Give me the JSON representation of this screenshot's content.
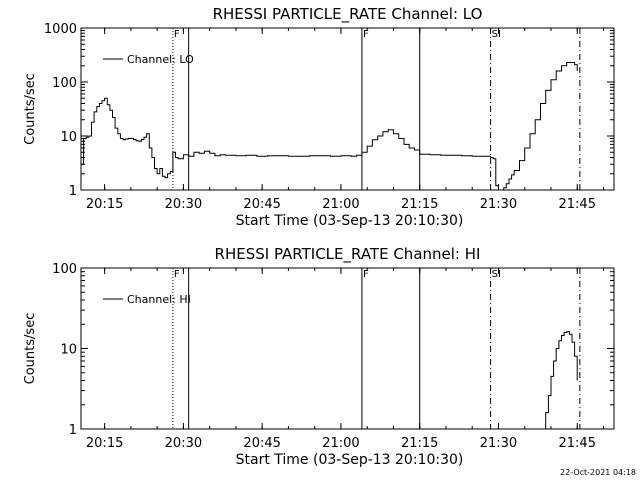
{
  "footer": {
    "date_stamp": "22-Oct-2021 04:18"
  },
  "colors": {
    "background": "#ffffff",
    "foreground": "#000000"
  },
  "chart_data": [
    {
      "type": "line",
      "title": "RHESSI PARTICLE_RATE Channel: LO",
      "xlabel": "Start Time (03-Sep-13 20:10:30)",
      "ylabel": "Counts/sec",
      "y_scale": "log",
      "xlim": [
        "20:10:30",
        "21:52:00"
      ],
      "ylim": [
        1,
        1000
      ],
      "x_tick_labels": [
        "20:15",
        "20:30",
        "20:45",
        "21:00",
        "21:15",
        "21:30",
        "21:45"
      ],
      "y_tick_labels": [
        "1",
        "10",
        "100",
        "1000"
      ],
      "grid": false,
      "legend": {
        "position": "top-left",
        "entries": [
          "Channel: LO"
        ]
      },
      "markers": [
        {
          "time": "20:28:00",
          "style": "dotted",
          "label": "F"
        },
        {
          "time": "20:31:00",
          "style": "solid",
          "label": ""
        },
        {
          "time": "21:04:00",
          "style": "solid",
          "label": "F"
        },
        {
          "time": "21:15:00",
          "style": "solid",
          "label": ""
        },
        {
          "time": "21:28:30",
          "style": "dashdot",
          "label": "SI"
        },
        {
          "time": "21:45:30",
          "style": "dashdot",
          "label": ""
        }
      ],
      "series": [
        {
          "name": "Channel: LO",
          "x": [
            "20:10:30",
            "20:11:00",
            "20:11:30",
            "20:12:00",
            "20:12:30",
            "20:13:00",
            "20:13:30",
            "20:14:00",
            "20:14:30",
            "20:15:00",
            "20:15:30",
            "20:16:00",
            "20:16:30",
            "20:17:00",
            "20:17:30",
            "20:18:00",
            "20:18:30",
            "20:19:00",
            "20:19:30",
            "20:20:00",
            "20:20:30",
            "20:21:00",
            "20:21:30",
            "20:22:00",
            "20:22:30",
            "20:23:00",
            "20:23:30",
            "20:24:00",
            "20:24:30",
            "20:25:00",
            "20:25:30",
            "20:26:00",
            "20:26:30",
            "20:27:00",
            "20:27:30",
            "20:28:00",
            "20:28:30",
            "20:29:00",
            "20:30:00",
            "20:31:00",
            "20:32:00",
            "20:33:00",
            "20:34:00",
            "20:35:00",
            "20:36:00",
            "20:37:00",
            "20:38:00",
            "20:40:00",
            "20:42:00",
            "20:44:00",
            "20:46:00",
            "20:48:00",
            "20:50:00",
            "20:52:00",
            "20:54:00",
            "20:56:00",
            "20:58:00",
            "21:00:00",
            "21:02:00",
            "21:03:00",
            "21:04:00",
            "21:05:00",
            "21:06:00",
            "21:07:00",
            "21:08:00",
            "21:09:00",
            "21:10:00",
            "21:11:00",
            "21:12:00",
            "21:13:00",
            "21:14:00",
            "21:15:00",
            "21:17:00",
            "21:19:00",
            "21:21:00",
            "21:23:00",
            "21:25:00",
            "21:27:00",
            "21:28:30",
            "21:29:00",
            "21:29:30",
            "21:30:00",
            "21:30:30",
            "21:31:00",
            "21:31:30",
            "21:32:00",
            "21:32:30",
            "21:33:00",
            "21:34:00",
            "21:35:00",
            "21:36:00",
            "21:37:00",
            "21:38:00",
            "21:39:00",
            "21:40:00",
            "21:41:00",
            "21:42:00",
            "21:43:00",
            "21:44:00",
            "21:44:30",
            "21:45:00"
          ],
          "y": [
            3.0,
            9.0,
            9.5,
            10.0,
            18,
            28,
            35,
            40,
            45,
            50,
            38,
            30,
            22,
            14,
            11,
            9,
            8.5,
            8.8,
            9.0,
            9.0,
            8.6,
            8.2,
            8.0,
            8.6,
            9.5,
            11,
            6,
            4,
            2.5,
            2.0,
            2.5,
            1.8,
            1.7,
            2.0,
            2.2,
            5.0,
            4.0,
            3.8,
            4.5,
            4.2,
            5.0,
            4.8,
            5.2,
            4.8,
            4.3,
            4.5,
            4.4,
            4.3,
            4.4,
            4.2,
            4.3,
            4.3,
            4.2,
            4.2,
            4.3,
            4.3,
            4.2,
            4.3,
            4.2,
            4.4,
            5.0,
            6.5,
            8.5,
            10,
            12,
            13,
            11,
            9,
            7,
            6,
            5.5,
            4.6,
            4.5,
            4.4,
            4.4,
            4.3,
            4.2,
            4.2,
            4.0,
            3.8,
            1.2,
            0.8,
            0.9,
            1.1,
            1.3,
            1.6,
            1.9,
            2.3,
            3.5,
            6,
            11,
            20,
            40,
            70,
            110,
            160,
            200,
            230,
            230,
            210,
            160
          ]
        }
      ]
    },
    {
      "type": "line",
      "title": "RHESSI PARTICLE_RATE Channel: HI",
      "xlabel": "Start Time (03-Sep-13 20:10:30)",
      "ylabel": "Counts/sec",
      "y_scale": "log",
      "xlim": [
        "20:10:30",
        "21:52:00"
      ],
      "ylim": [
        1,
        100
      ],
      "x_tick_labels": [
        "20:15",
        "20:30",
        "20:45",
        "21:00",
        "21:15",
        "21:30",
        "21:45"
      ],
      "y_tick_labels": [
        "1",
        "10",
        "100"
      ],
      "grid": false,
      "legend": {
        "position": "top-left",
        "entries": [
          "Channel: HI"
        ]
      },
      "markers": [
        {
          "time": "20:28:00",
          "style": "dotted",
          "label": "F"
        },
        {
          "time": "20:31:00",
          "style": "solid",
          "label": ""
        },
        {
          "time": "21:04:00",
          "style": "solid",
          "label": "F"
        },
        {
          "time": "21:15:00",
          "style": "solid",
          "label": ""
        },
        {
          "time": "21:28:30",
          "style": "dashdot",
          "label": "SI"
        },
        {
          "time": "21:45:30",
          "style": "dashdot",
          "label": ""
        }
      ],
      "series": [
        {
          "name": "Channel: HI",
          "x": [
            "21:38:30",
            "21:39:00",
            "21:39:30",
            "21:40:00",
            "21:40:30",
            "21:41:00",
            "21:41:30",
            "21:42:00",
            "21:42:30",
            "21:43:00",
            "21:43:30",
            "21:44:00",
            "21:44:30",
            "21:45:00"
          ],
          "y": [
            1.0,
            1.6,
            2.6,
            4.5,
            7.0,
            10.0,
            12.5,
            14.5,
            15.8,
            16.2,
            15.0,
            12.0,
            8.0,
            4.0
          ]
        }
      ]
    }
  ]
}
